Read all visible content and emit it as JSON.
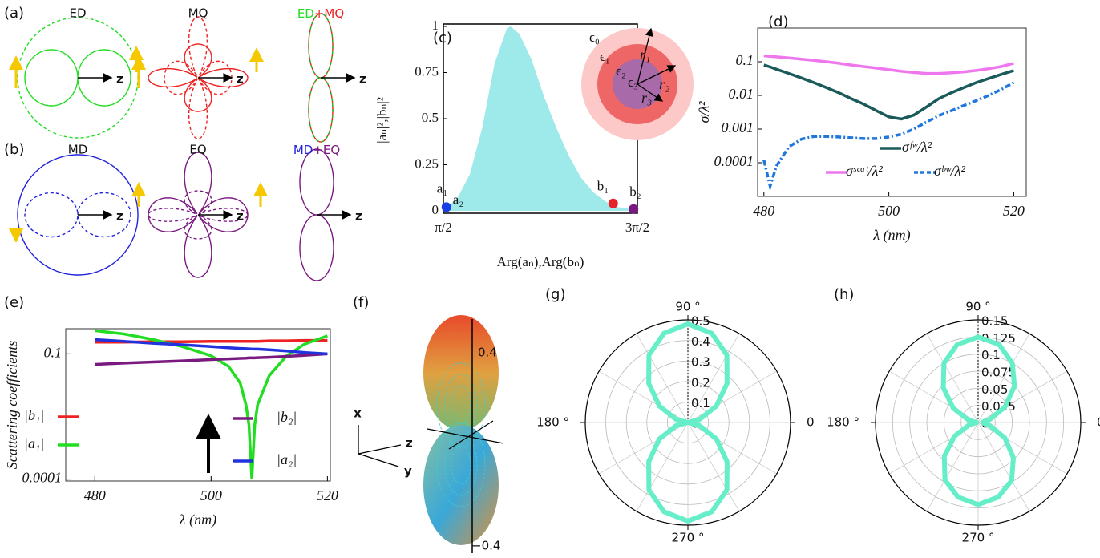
{
  "diagrams": {
    "a": {
      "panel": "(a)",
      "patterns": [
        {
          "label": "ED",
          "color": "#22dd22",
          "axis": "z"
        },
        {
          "label": "MQ",
          "color": "#ee2222",
          "axis": "z"
        },
        {
          "label": [
            "ED",
            "+",
            "MQ"
          ],
          "colors": [
            "#22dd22",
            "#ee2222",
            "#ee2222"
          ],
          "axis": "z"
        }
      ]
    },
    "b": {
      "panel": "(b)",
      "patterns": [
        {
          "label": "MD",
          "color": "#2222dd",
          "axis": "z"
        },
        {
          "label": "EQ",
          "color": "#7a1a80",
          "axis": "z"
        },
        {
          "label": [
            "MD",
            "+",
            "EQ"
          ],
          "colors": [
            "#2222dd",
            "#7a1a80",
            "#7a1a80"
          ],
          "axis": "z"
        }
      ]
    },
    "f": {
      "panel": "(f)",
      "axes": [
        "x",
        "z",
        "y"
      ],
      "ticks": [
        "0.4",
        "−0.4"
      ]
    }
  },
  "chart_data": [
    {
      "type": "area",
      "panel": "(c)",
      "color": "#9ee9e9",
      "x": [
        1.571,
        1.6,
        1.8,
        2.0,
        2.2,
        2.4,
        2.6,
        2.66,
        2.8,
        3.0,
        3.2,
        3.4,
        3.6,
        3.8,
        4.0,
        4.2,
        4.4,
        4.6,
        4.7
      ],
      "values": [
        0,
        0.01,
        0.07,
        0.2,
        0.45,
        0.8,
        0.99,
        1,
        0.96,
        0.82,
        0.62,
        0.45,
        0.3,
        0.18,
        0.1,
        0.05,
        0.02,
        0.01,
        0
      ],
      "xlim": [
        1.5708,
        4.7124
      ],
      "xticks": [
        {
          "value": 1.5708,
          "label": "π/2"
        },
        {
          "value": 4.7124,
          "label": "3π/2"
        }
      ],
      "ylim": [
        0,
        1
      ],
      "yticks": [
        0,
        0.25,
        0.5,
        0.75,
        1
      ],
      "ylabel": "|aₙ|²,|bₙ|²",
      "xlabel": "Arg(aₙ),Arg(bₙ)",
      "points": [
        {
          "label": "a₁",
          "color": "#22dd22",
          "x": 1.62,
          "y": 0.02
        },
        {
          "label": "a₂",
          "color": "#1a3ee8",
          "x": 1.62,
          "y": 0.02
        },
        {
          "label": "b₁",
          "color": "#e8202a",
          "x": 4.32,
          "y": 0.04
        },
        {
          "label": "b₂",
          "color": "#7a1a80",
          "x": 4.65,
          "y": 0.01
        }
      ],
      "inset_labels": {
        "eps": [
          "ϵ₀",
          "ϵ₁",
          "ϵ₂",
          "ϵ₃"
        ],
        "r": [
          "r₁",
          "r₂",
          "r₃"
        ]
      }
    },
    {
      "type": "line",
      "panel": "(d)",
      "log_y": true,
      "x": [
        480,
        481,
        482,
        484,
        486,
        488,
        490,
        492,
        494,
        496,
        498,
        500,
        502,
        504,
        506,
        508,
        510,
        512,
        514,
        516,
        518,
        520
      ],
      "series": [
        {
          "name": "σᶠʷ/λ²",
          "color": "#1a5a5a",
          "values": [
            0.08,
            0.07,
            0.06,
            0.045,
            0.033,
            0.024,
            0.017,
            0.012,
            0.008,
            0.0055,
            0.0035,
            0.0023,
            0.002,
            0.0026,
            0.0045,
            0.008,
            0.012,
            0.017,
            0.024,
            0.032,
            0.042,
            0.055
          ]
        },
        {
          "name": "σˢᶜᵃᵗ/λ²",
          "color": "#ee77ee",
          "values": [
            0.15,
            0.145,
            0.14,
            0.13,
            0.12,
            0.11,
            0.1,
            0.09,
            0.08,
            0.072,
            0.065,
            0.058,
            0.052,
            0.048,
            0.045,
            0.045,
            0.047,
            0.05,
            0.055,
            0.062,
            0.072,
            0.09
          ]
        },
        {
          "name": "σᵇʷ/λ²",
          "color": "#2277dd",
          "dash": true,
          "values": [
            0.00012,
            2e-05,
            8e-05,
            0.0003,
            0.0005,
            0.0006,
            0.0006,
            0.00058,
            0.00055,
            0.00052,
            0.00052,
            0.00058,
            0.0007,
            0.001,
            0.0016,
            0.0025,
            0.0035,
            0.005,
            0.007,
            0.01,
            0.015,
            0.024
          ]
        }
      ],
      "xlim": [
        479,
        522
      ],
      "xticks": [
        480,
        500,
        520
      ],
      "ylim": [
        1e-05,
        1
      ],
      "yticks": [
        0.0001,
        0.001,
        0.01,
        0.1
      ],
      "xlabel": "λ (nm)",
      "ylabel": "σ/λ²"
    },
    {
      "type": "line",
      "panel": "(e)",
      "log_y": true,
      "x": [
        480,
        485,
        490,
        495,
        500,
        503,
        505,
        506,
        506.5,
        507,
        507.5,
        508,
        510,
        513,
        516,
        520
      ],
      "series": [
        {
          "name": "|b₁|",
          "color": "#ee2222",
          "values": [
            0.19,
            0.19,
            0.195,
            0.195,
            0.2,
            0.2,
            0.2,
            0.2,
            0.2,
            0.2,
            0.2,
            0.2,
            0.205,
            0.205,
            0.21,
            0.21
          ]
        },
        {
          "name": "|a₁|",
          "color": "#22dd22",
          "values": [
            0.36,
            0.3,
            0.22,
            0.15,
            0.09,
            0.05,
            0.02,
            0.006,
            0.002,
            0.0001,
            0.002,
            0.006,
            0.03,
            0.09,
            0.17,
            0.27
          ]
        },
        {
          "name": "|b₂|",
          "color": "#7a1a80",
          "values": [
            0.056,
            0.06,
            0.064,
            0.068,
            0.073,
            0.076,
            0.078,
            0.079,
            0.08,
            0.08,
            0.08,
            0.081,
            0.083,
            0.087,
            0.092,
            0.1
          ]
        },
        {
          "name": "|a₂|",
          "color": "#2233dd",
          "values": [
            0.22,
            0.2,
            0.18,
            0.165,
            0.15,
            0.14,
            0.135,
            0.133,
            0.132,
            0.131,
            0.13,
            0.13,
            0.125,
            0.117,
            0.108,
            0.1
          ]
        }
      ],
      "xlim": [
        475,
        520.5
      ],
      "xticks": [
        480,
        500,
        520
      ],
      "ylim": [
        9e-05,
        0.4
      ],
      "yticks": [
        0.0001,
        0.1
      ],
      "xlabel": "λ (nm)",
      "ylabel": "Scattering coefficients"
    },
    {
      "type": "polar",
      "panel": "(g)",
      "color": "#66eec8",
      "theta": [
        0,
        15,
        30,
        45,
        60,
        75,
        90,
        105,
        120,
        135,
        150,
        165,
        180,
        195,
        210,
        225,
        240,
        255,
        270,
        285,
        300,
        315,
        330,
        345,
        360
      ],
      "r": [
        0,
        0.06,
        0.16,
        0.27,
        0.38,
        0.45,
        0.48,
        0.45,
        0.38,
        0.27,
        0.16,
        0.06,
        0,
        0.06,
        0.16,
        0.27,
        0.38,
        0.45,
        0.48,
        0.45,
        0.38,
        0.27,
        0.16,
        0.06,
        0
      ],
      "rlim": [
        0,
        0.5
      ],
      "rticks": [
        {
          "value": 0,
          "label": "0."
        },
        0.1,
        0.2,
        0.3,
        0.4,
        0.5
      ],
      "thetaticks": [
        0,
        {
          "value": 90,
          "label": "90 °"
        },
        {
          "value": 180,
          "label": "180 °"
        },
        {
          "value": 270,
          "label": "270 °"
        }
      ]
    },
    {
      "type": "polar",
      "panel": "(h)",
      "color": "#66eec8",
      "theta": [
        0,
        15,
        30,
        45,
        60,
        75,
        90,
        105,
        120,
        135,
        150,
        165,
        180,
        195,
        210,
        225,
        240,
        255,
        270,
        285,
        300,
        315,
        330,
        345,
        360
      ],
      "r": [
        0.005,
        0.018,
        0.045,
        0.075,
        0.1,
        0.118,
        0.125,
        0.118,
        0.1,
        0.072,
        0.042,
        0.015,
        0.002,
        0.014,
        0.04,
        0.07,
        0.097,
        0.113,
        0.12,
        0.113,
        0.098,
        0.073,
        0.045,
        0.018,
        0.005
      ],
      "rlim": [
        0,
        0.15
      ],
      "rticks": [
        {
          "value": 0,
          "label": "0."
        },
        0.025,
        0.05,
        0.075,
        0.1,
        0.125,
        0.15
      ],
      "thetaticks": [
        0,
        {
          "value": 90,
          "label": "90 °"
        },
        {
          "value": 180,
          "label": "180 °"
        },
        {
          "value": 270,
          "label": "270 °"
        }
      ]
    }
  ]
}
